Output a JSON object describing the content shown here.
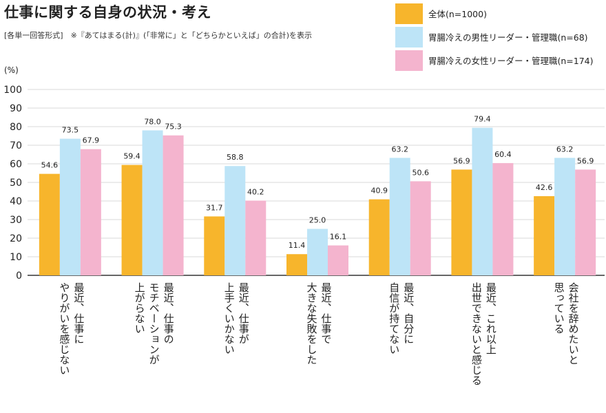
{
  "page": {
    "title": "仕事に関する自身の状況・考え",
    "subtitle": "[各単一回答形式]　※『あてはまる(計)』(「非常に」と「どちらかといえば」の合計)を表示"
  },
  "chart_data": {
    "type": "bar",
    "title": "仕事に関する自身の状況・考え",
    "ylabel": "(%)",
    "ylim": [
      0,
      100
    ],
    "yticks": [
      0,
      10,
      20,
      30,
      40,
      50,
      60,
      70,
      80,
      90,
      100
    ],
    "grid": true,
    "legend_position": "top-right",
    "categories": [
      "最近、仕事に\nやりがいを感じない",
      "最近、仕事の\nモチベーションが\n上がらない",
      "最近、仕事が\n上手くいかない",
      "最近、仕事で\n大きな失敗をした",
      "最近、自分に\n自信が持てない",
      "最近、これ以上\n出世できないと感じる",
      "会社を辞めたいと\n思っている"
    ],
    "series": [
      {
        "name": "全体(n=1000)",
        "color": "#F7B52C",
        "values": [
          54.6,
          59.4,
          31.7,
          11.4,
          40.9,
          56.9,
          42.6
        ]
      },
      {
        "name": "胃腸冷えの男性リーダー・管理職(n=68)",
        "color": "#BDE4F7",
        "values": [
          73.5,
          78.0,
          58.8,
          25.0,
          63.2,
          79.4,
          63.2
        ]
      },
      {
        "name": "胃腸冷えの女性リーダー・管理職(n=174)",
        "color": "#F4B4CE",
        "values": [
          67.9,
          75.3,
          40.2,
          16.1,
          50.6,
          60.4,
          56.9
        ]
      }
    ]
  }
}
